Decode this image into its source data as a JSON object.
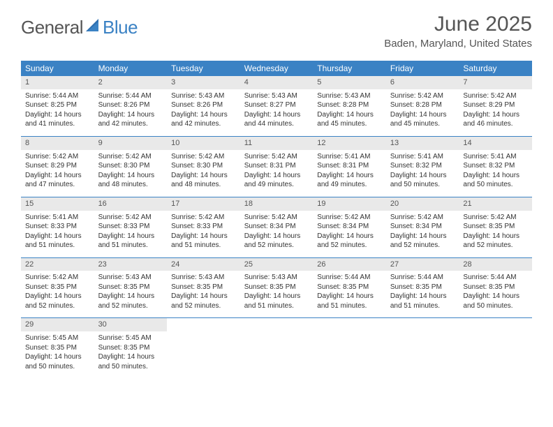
{
  "brand": {
    "general": "General",
    "blue": "Blue"
  },
  "title": "June 2025",
  "location": "Baden, Maryland, United States",
  "colors": {
    "accent": "#3b82c4",
    "heading_text": "#555555",
    "daynum_bg": "#e9e9e9",
    "body_text": "#333333",
    "background": "#ffffff"
  },
  "weekdays": [
    "Sunday",
    "Monday",
    "Tuesday",
    "Wednesday",
    "Thursday",
    "Friday",
    "Saturday"
  ],
  "days": [
    {
      "n": "1",
      "sunrise": "Sunrise: 5:44 AM",
      "sunset": "Sunset: 8:25 PM",
      "day1": "Daylight: 14 hours",
      "day2": "and 41 minutes."
    },
    {
      "n": "2",
      "sunrise": "Sunrise: 5:44 AM",
      "sunset": "Sunset: 8:26 PM",
      "day1": "Daylight: 14 hours",
      "day2": "and 42 minutes."
    },
    {
      "n": "3",
      "sunrise": "Sunrise: 5:43 AM",
      "sunset": "Sunset: 8:26 PM",
      "day1": "Daylight: 14 hours",
      "day2": "and 42 minutes."
    },
    {
      "n": "4",
      "sunrise": "Sunrise: 5:43 AM",
      "sunset": "Sunset: 8:27 PM",
      "day1": "Daylight: 14 hours",
      "day2": "and 44 minutes."
    },
    {
      "n": "5",
      "sunrise": "Sunrise: 5:43 AM",
      "sunset": "Sunset: 8:28 PM",
      "day1": "Daylight: 14 hours",
      "day2": "and 45 minutes."
    },
    {
      "n": "6",
      "sunrise": "Sunrise: 5:42 AM",
      "sunset": "Sunset: 8:28 PM",
      "day1": "Daylight: 14 hours",
      "day2": "and 45 minutes."
    },
    {
      "n": "7",
      "sunrise": "Sunrise: 5:42 AM",
      "sunset": "Sunset: 8:29 PM",
      "day1": "Daylight: 14 hours",
      "day2": "and 46 minutes."
    },
    {
      "n": "8",
      "sunrise": "Sunrise: 5:42 AM",
      "sunset": "Sunset: 8:29 PM",
      "day1": "Daylight: 14 hours",
      "day2": "and 47 minutes."
    },
    {
      "n": "9",
      "sunrise": "Sunrise: 5:42 AM",
      "sunset": "Sunset: 8:30 PM",
      "day1": "Daylight: 14 hours",
      "day2": "and 48 minutes."
    },
    {
      "n": "10",
      "sunrise": "Sunrise: 5:42 AM",
      "sunset": "Sunset: 8:30 PM",
      "day1": "Daylight: 14 hours",
      "day2": "and 48 minutes."
    },
    {
      "n": "11",
      "sunrise": "Sunrise: 5:42 AM",
      "sunset": "Sunset: 8:31 PM",
      "day1": "Daylight: 14 hours",
      "day2": "and 49 minutes."
    },
    {
      "n": "12",
      "sunrise": "Sunrise: 5:41 AM",
      "sunset": "Sunset: 8:31 PM",
      "day1": "Daylight: 14 hours",
      "day2": "and 49 minutes."
    },
    {
      "n": "13",
      "sunrise": "Sunrise: 5:41 AM",
      "sunset": "Sunset: 8:32 PM",
      "day1": "Daylight: 14 hours",
      "day2": "and 50 minutes."
    },
    {
      "n": "14",
      "sunrise": "Sunrise: 5:41 AM",
      "sunset": "Sunset: 8:32 PM",
      "day1": "Daylight: 14 hours",
      "day2": "and 50 minutes."
    },
    {
      "n": "15",
      "sunrise": "Sunrise: 5:41 AM",
      "sunset": "Sunset: 8:33 PM",
      "day1": "Daylight: 14 hours",
      "day2": "and 51 minutes."
    },
    {
      "n": "16",
      "sunrise": "Sunrise: 5:42 AM",
      "sunset": "Sunset: 8:33 PM",
      "day1": "Daylight: 14 hours",
      "day2": "and 51 minutes."
    },
    {
      "n": "17",
      "sunrise": "Sunrise: 5:42 AM",
      "sunset": "Sunset: 8:33 PM",
      "day1": "Daylight: 14 hours",
      "day2": "and 51 minutes."
    },
    {
      "n": "18",
      "sunrise": "Sunrise: 5:42 AM",
      "sunset": "Sunset: 8:34 PM",
      "day1": "Daylight: 14 hours",
      "day2": "and 52 minutes."
    },
    {
      "n": "19",
      "sunrise": "Sunrise: 5:42 AM",
      "sunset": "Sunset: 8:34 PM",
      "day1": "Daylight: 14 hours",
      "day2": "and 52 minutes."
    },
    {
      "n": "20",
      "sunrise": "Sunrise: 5:42 AM",
      "sunset": "Sunset: 8:34 PM",
      "day1": "Daylight: 14 hours",
      "day2": "and 52 minutes."
    },
    {
      "n": "21",
      "sunrise": "Sunrise: 5:42 AM",
      "sunset": "Sunset: 8:35 PM",
      "day1": "Daylight: 14 hours",
      "day2": "and 52 minutes."
    },
    {
      "n": "22",
      "sunrise": "Sunrise: 5:42 AM",
      "sunset": "Sunset: 8:35 PM",
      "day1": "Daylight: 14 hours",
      "day2": "and 52 minutes."
    },
    {
      "n": "23",
      "sunrise": "Sunrise: 5:43 AM",
      "sunset": "Sunset: 8:35 PM",
      "day1": "Daylight: 14 hours",
      "day2": "and 52 minutes."
    },
    {
      "n": "24",
      "sunrise": "Sunrise: 5:43 AM",
      "sunset": "Sunset: 8:35 PM",
      "day1": "Daylight: 14 hours",
      "day2": "and 52 minutes."
    },
    {
      "n": "25",
      "sunrise": "Sunrise: 5:43 AM",
      "sunset": "Sunset: 8:35 PM",
      "day1": "Daylight: 14 hours",
      "day2": "and 51 minutes."
    },
    {
      "n": "26",
      "sunrise": "Sunrise: 5:44 AM",
      "sunset": "Sunset: 8:35 PM",
      "day1": "Daylight: 14 hours",
      "day2": "and 51 minutes."
    },
    {
      "n": "27",
      "sunrise": "Sunrise: 5:44 AM",
      "sunset": "Sunset: 8:35 PM",
      "day1": "Daylight: 14 hours",
      "day2": "and 51 minutes."
    },
    {
      "n": "28",
      "sunrise": "Sunrise: 5:44 AM",
      "sunset": "Sunset: 8:35 PM",
      "day1": "Daylight: 14 hours",
      "day2": "and 50 minutes."
    },
    {
      "n": "29",
      "sunrise": "Sunrise: 5:45 AM",
      "sunset": "Sunset: 8:35 PM",
      "day1": "Daylight: 14 hours",
      "day2": "and 50 minutes."
    },
    {
      "n": "30",
      "sunrise": "Sunrise: 5:45 AM",
      "sunset": "Sunset: 8:35 PM",
      "day1": "Daylight: 14 hours",
      "day2": "and 50 minutes."
    }
  ]
}
